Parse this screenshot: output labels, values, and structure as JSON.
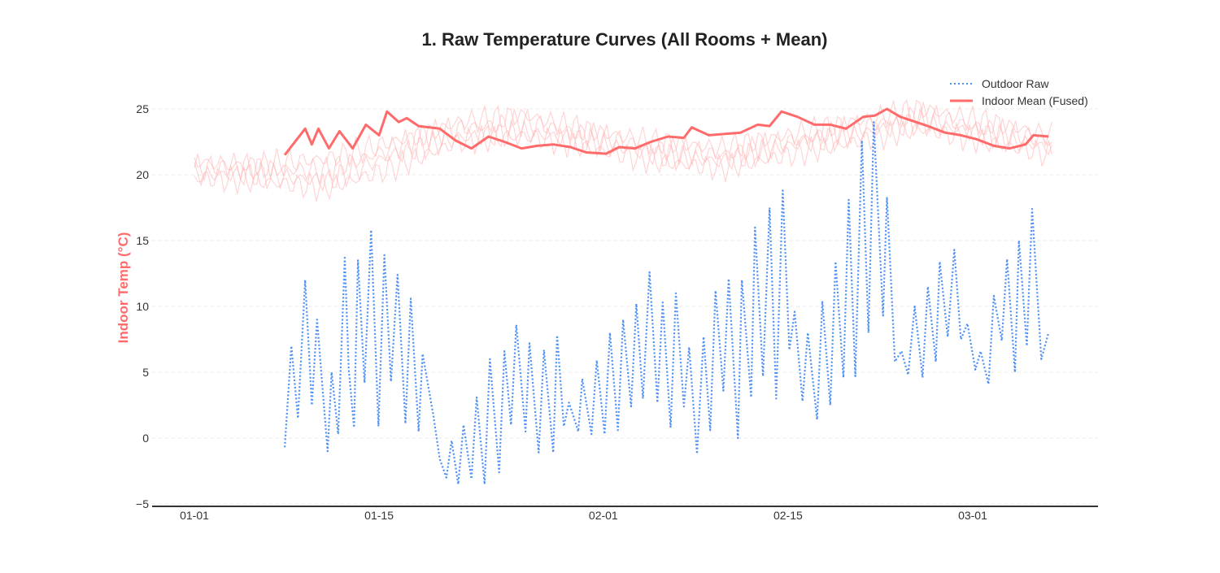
{
  "chart_data": {
    "type": "line",
    "title": "1. Raw Temperature Curves (All Rooms + Mean)",
    "xlabel": "",
    "ylabel": "Indoor Temp (°C)",
    "x_unit": "days since 01-01",
    "xlim": [
      -3.2,
      68.6
    ],
    "ylim": [
      -5,
      28
    ],
    "yticks": [
      -5,
      0,
      5,
      10,
      15,
      20,
      25
    ],
    "ytick_labels": [
      "−5",
      "0",
      "5",
      "10",
      "15",
      "20",
      "25"
    ],
    "xticks": [
      0,
      14,
      31,
      45,
      59
    ],
    "xtick_labels": [
      "01-01",
      "01-15",
      "02-01",
      "02-15",
      "03-01"
    ],
    "grid": true,
    "legend_position": "top-right",
    "legend": [
      "Outdoor Raw",
      "Indoor Mean (Fused)"
    ],
    "colors": {
      "outdoor": "#4d8ff5",
      "mean": "#ff6b6b",
      "rooms": "#ffb3b3",
      "axis": "#333333",
      "ylabel": "#ff6b6b"
    },
    "outdoor_raw": {
      "name": "Outdoor Raw",
      "x": [
        6.85,
        7.35,
        7.85,
        8.4,
        8.9,
        9.3,
        10.1,
        10.4,
        10.9,
        11.4,
        11.7,
        12.1,
        12.4,
        12.9,
        13.4,
        13.95,
        14.4,
        14.9,
        15.4,
        16.0,
        16.4,
        17.0,
        17.3,
        18.1,
        18.6,
        19.1,
        19.5,
        20.0,
        20.4,
        21.0,
        21.4,
        22.0,
        22.4,
        23.1,
        23.5,
        24.0,
        24.4,
        25.1,
        25.4,
        26.1,
        26.5,
        27.2,
        27.5,
        28.0,
        28.4,
        29.1,
        29.4,
        30.1,
        30.5,
        31.1,
        31.5,
        32.1,
        32.5,
        33.1,
        33.5,
        34.0,
        34.5,
        35.1,
        35.5,
        36.1,
        36.5,
        37.1,
        37.5,
        38.1,
        38.6,
        39.1,
        39.5,
        40.1,
        40.5,
        41.2,
        41.5,
        42.2,
        42.5,
        43.1,
        43.6,
        44.1,
        44.6,
        45.1,
        45.5,
        46.1,
        46.5,
        47.2,
        47.6,
        48.2,
        48.6,
        49.2,
        49.6,
        50.1,
        50.6,
        51.1,
        51.5,
        52.2,
        52.5,
        53.1,
        53.6,
        54.1,
        54.6,
        55.2,
        55.6,
        56.2,
        56.5,
        57.1,
        57.6,
        58.1,
        58.6,
        59.2,
        59.6,
        60.2,
        60.6,
        61.2,
        61.6,
        62.2,
        62.5,
        63.1,
        63.5,
        64.2,
        64.75
      ],
      "y": [
        -0.7,
        7.0,
        1.5,
        12.0,
        2.5,
        9.0,
        -1.0,
        5.0,
        0.3,
        13.7,
        5.2,
        0.8,
        13.5,
        4.2,
        15.8,
        0.9,
        13.9,
        4.3,
        12.4,
        1.1,
        10.6,
        0.5,
        6.4,
        1.8,
        -1.6,
        -3.0,
        -0.2,
        -3.5,
        1.0,
        -3.1,
        3.1,
        -3.5,
        6.0,
        -2.6,
        6.6,
        1.0,
        8.6,
        0.5,
        7.2,
        -1.1,
        6.7,
        -1.1,
        7.8,
        0.9,
        2.7,
        0.5,
        4.5,
        0.3,
        5.9,
        0.3,
        8.0,
        0.6,
        9.0,
        2.4,
        10.2,
        3.0,
        12.6,
        2.7,
        10.3,
        0.8,
        11.0,
        2.4,
        6.9,
        -1.2,
        7.7,
        0.6,
        11.2,
        3.6,
        12.1,
        0.0,
        12.0,
        3.1,
        16.0,
        4.7,
        17.5,
        3.0,
        18.8,
        6.7,
        9.6,
        2.8,
        8.0,
        1.4,
        10.4,
        2.5,
        13.4,
        4.6,
        18.1,
        4.7,
        22.6,
        8.0,
        24.0,
        9.3,
        18.3,
        5.8,
        6.6,
        4.8,
        10.0,
        4.6,
        11.5,
        5.8,
        13.4,
        7.7,
        14.3,
        7.5,
        8.7,
        5.2,
        6.6,
        4.1,
        10.8,
        7.4,
        13.6,
        5.0,
        15.0,
        7.0,
        17.4,
        6.0,
        8.0
      ]
    },
    "indoor_mean": {
      "name": "Indoor Mean (Fused)",
      "x": [
        6.85,
        8.4,
        8.9,
        9.4,
        10.2,
        11.0,
        12.0,
        13.0,
        14.0,
        14.6,
        15.5,
        16.1,
        17.0,
        18.6,
        19.8,
        21.0,
        22.3,
        23.5,
        24.8,
        26.0,
        27.2,
        28.5,
        29.7,
        31.2,
        32.2,
        33.4,
        34.6,
        35.9,
        37.1,
        37.7,
        39.0,
        40.2,
        41.4,
        42.7,
        43.6,
        44.5,
        45.7,
        47.0,
        48.2,
        49.4,
        50.7,
        51.6,
        52.5,
        53.5,
        54.7,
        55.6,
        56.9,
        58.1,
        59.3,
        60.6,
        61.8,
        63.0,
        63.6,
        64.75
      ],
      "y": [
        21.5,
        23.5,
        22.3,
        23.5,
        22.0,
        23.3,
        22.0,
        23.8,
        23.0,
        24.8,
        24.0,
        24.3,
        23.7,
        23.5,
        22.6,
        22.0,
        22.9,
        22.5,
        22.0,
        22.2,
        22.3,
        22.1,
        21.7,
        21.6,
        22.1,
        22.0,
        22.5,
        22.9,
        22.8,
        23.6,
        23.0,
        23.1,
        23.2,
        23.8,
        23.7,
        24.8,
        24.4,
        23.8,
        23.8,
        23.5,
        24.4,
        24.5,
        25.0,
        24.4,
        24.0,
        23.7,
        23.2,
        23.0,
        22.7,
        22.2,
        22.0,
        22.3,
        23.0,
        22.9
      ]
    },
    "rooms": [
      {
        "x": [
          0,
          5,
          10,
          15,
          20,
          25,
          30,
          35,
          40,
          45,
          50,
          55,
          60,
          65
        ],
        "y": [
          20.5,
          20.8,
          21.2,
          22.5,
          23.5,
          24.0,
          23.0,
          22.0,
          21.5,
          22.5,
          23.5,
          24.5,
          23.5,
          22.5
        ]
      },
      {
        "x": [
          0,
          5,
          10,
          15,
          20,
          25,
          30,
          35,
          40,
          45,
          50,
          55,
          60,
          65
        ],
        "y": [
          20.0,
          20.0,
          19.5,
          21.5,
          22.8,
          23.2,
          22.5,
          21.5,
          21.0,
          22.2,
          23.0,
          24.0,
          23.0,
          22.0
        ]
      },
      {
        "x": [
          0,
          5,
          10,
          15,
          20,
          25,
          30,
          35,
          40,
          45,
          50,
          55,
          60,
          65
        ],
        "y": [
          21.0,
          20.5,
          20.3,
          22.0,
          24.0,
          24.5,
          23.3,
          22.5,
          22.0,
          23.0,
          24.0,
          25.0,
          24.0,
          23.0
        ]
      },
      {
        "x": [
          0,
          5,
          10,
          15,
          20,
          25,
          30,
          35,
          40,
          45,
          50,
          55,
          60,
          65
        ],
        "y": [
          19.8,
          19.5,
          19.0,
          20.5,
          22.5,
          23.0,
          22.0,
          21.0,
          20.5,
          21.5,
          22.5,
          23.5,
          22.5,
          21.5
        ]
      }
    ]
  }
}
